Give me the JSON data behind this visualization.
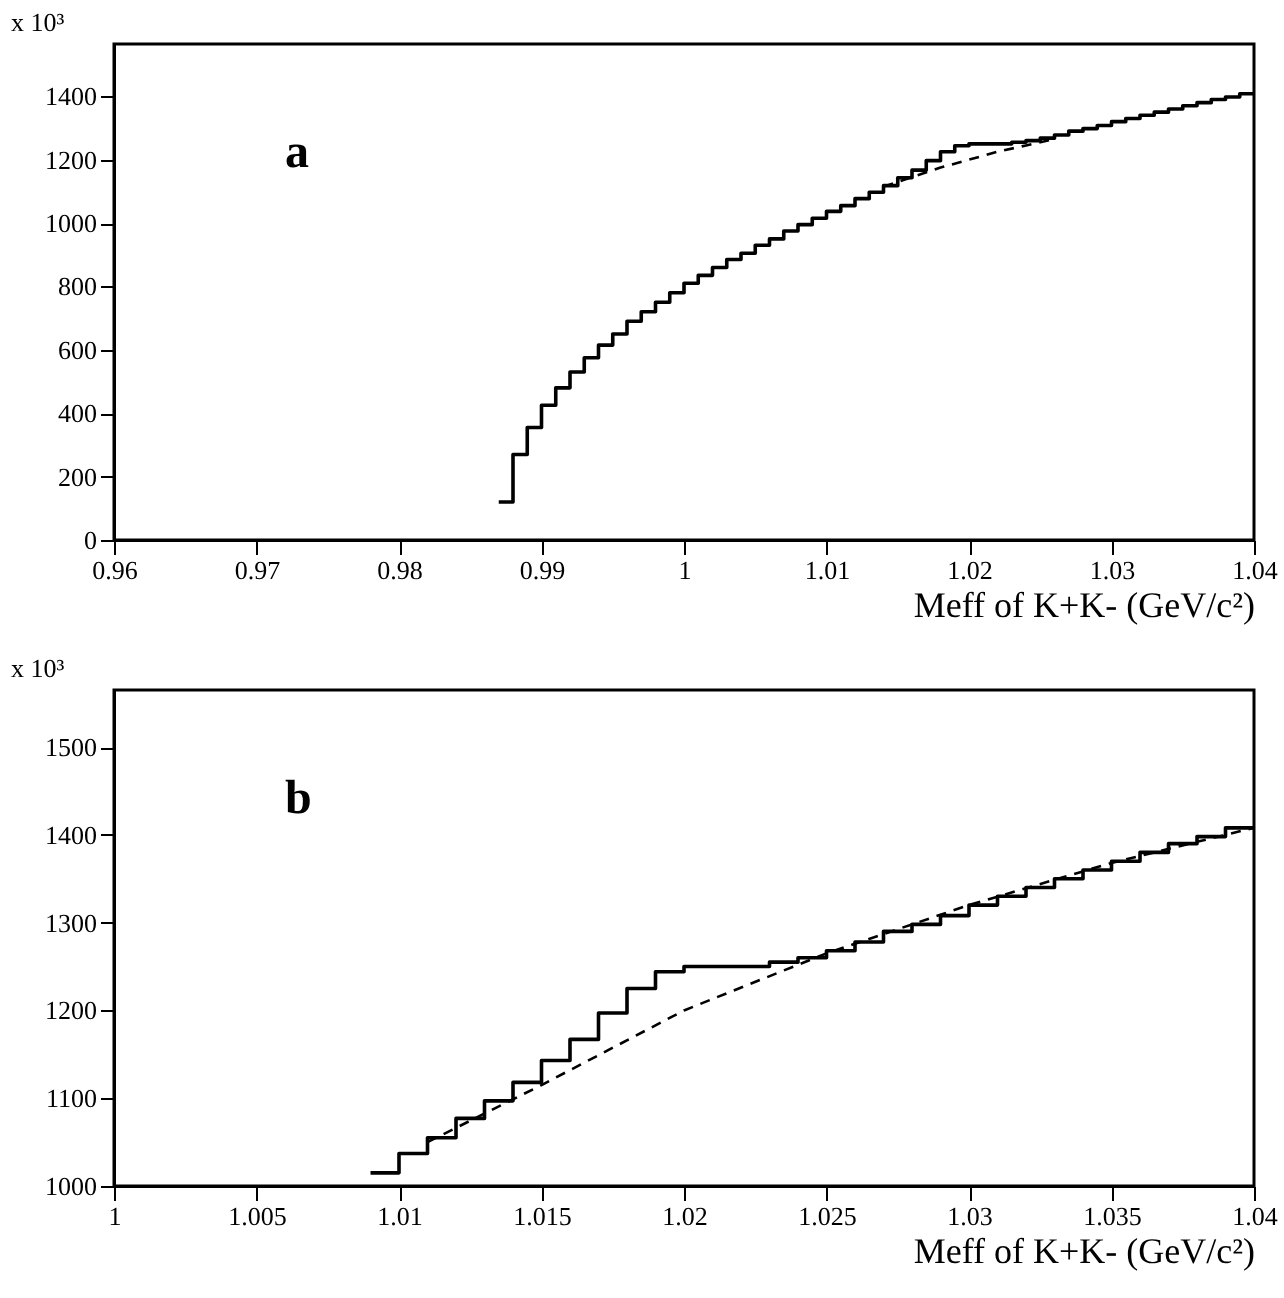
{
  "chart_data": [
    {
      "type": "step",
      "xlabel": "Meff of K+K- (GeV/c²)",
      "ylabel": "x 10³",
      "annotations": [
        "a"
      ],
      "series": [
        {
          "color": "#000000",
          "x": [
            0.987,
            0.988,
            0.989,
            0.99,
            0.991,
            0.992,
            0.993,
            0.994,
            0.995,
            0.996,
            0.997,
            0.998,
            0.999,
            1.0,
            1.001,
            1.002,
            1.003,
            1.004,
            1.005,
            1.006,
            1.007,
            1.008,
            1.009,
            1.01,
            1.011,
            1.012,
            1.013,
            1.014,
            1.015,
            1.016,
            1.017,
            1.018,
            1.019,
            1.02,
            1.021,
            1.022,
            1.023,
            1.024,
            1.025,
            1.026,
            1.027,
            1.028,
            1.029,
            1.03,
            1.031,
            1.032,
            1.033,
            1.034,
            1.035,
            1.036,
            1.037,
            1.038,
            1.039,
            1.04
          ],
          "values": [
            120,
            270,
            355,
            425,
            480,
            530,
            575,
            615,
            650,
            690,
            720,
            750,
            780,
            810,
            835,
            860,
            885,
            905,
            930,
            950,
            975,
            995,
            1015,
            1037,
            1055,
            1077,
            1097,
            1118,
            1143,
            1167,
            1197,
            1225,
            1244,
            1250,
            1250,
            1250,
            1255,
            1260,
            1268,
            1278,
            1290,
            1298,
            1308,
            1320,
            1330,
            1340,
            1350,
            1360,
            1370,
            1380,
            1390,
            1398,
            1408,
            1408
          ]
        },
        {
          "type": "line",
          "line_style": "dashed",
          "color": "#000000",
          "x": [
            1.014,
            1.016,
            1.018,
            1.02,
            1.022,
            1.024,
            1.026
          ],
          "values": [
            1115,
            1145,
            1175,
            1200,
            1225,
            1245,
            1265
          ]
        }
      ],
      "xlim": [
        0.96,
        1.04
      ],
      "xticks": [
        0.96,
        0.97,
        0.98,
        0.99,
        1,
        1.01,
        1.02,
        1.03,
        1.04
      ],
      "ylim": [
        0,
        1565
      ],
      "yticks": [
        0,
        200,
        400,
        600,
        800,
        1000,
        1200,
        1400
      ],
      "grid": false
    },
    {
      "type": "step",
      "xlabel": "Meff of K+K- (GeV/c²)",
      "ylabel": "x 10³",
      "annotations": [
        "b"
      ],
      "series": [
        {
          "color": "#000000",
          "x": [
            1.009,
            1.01,
            1.011,
            1.012,
            1.013,
            1.014,
            1.015,
            1.016,
            1.017,
            1.018,
            1.019,
            1.02,
            1.021,
            1.022,
            1.023,
            1.024,
            1.025,
            1.026,
            1.027,
            1.028,
            1.029,
            1.03,
            1.031,
            1.032,
            1.033,
            1.034,
            1.035,
            1.036,
            1.037,
            1.038,
            1.039,
            1.04
          ],
          "values": [
            1015,
            1037,
            1055,
            1077,
            1097,
            1118,
            1143,
            1167,
            1197,
            1225,
            1244,
            1250,
            1250,
            1250,
            1255,
            1260,
            1268,
            1278,
            1290,
            1298,
            1308,
            1320,
            1330,
            1340,
            1350,
            1360,
            1370,
            1380,
            1390,
            1398,
            1408,
            1408
          ]
        },
        {
          "type": "line",
          "line_style": "dashed",
          "color": "#000000",
          "x": [
            1.011,
            1.015,
            1.02,
            1.025,
            1.03,
            1.035,
            1.04
          ],
          "values": [
            1050,
            1115,
            1200,
            1265,
            1320,
            1368,
            1408
          ]
        }
      ],
      "xlim": [
        1,
        1.04
      ],
      "xticks": [
        1,
        1.005,
        1.01,
        1.015,
        1.02,
        1.025,
        1.03,
        1.035,
        1.04
      ],
      "ylim": [
        1000,
        1565
      ],
      "yticks": [
        1000,
        1100,
        1200,
        1300,
        1400,
        1500
      ],
      "grid": false
    }
  ]
}
